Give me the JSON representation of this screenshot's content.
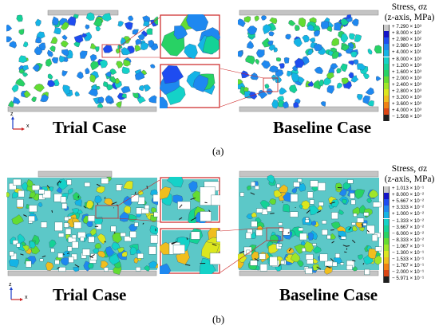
{
  "panel_a": {
    "label": "(a)",
    "trial_case": "Trial Case",
    "baseline_case": "Baseline Case",
    "legend": {
      "title_line1": "Stress, σz",
      "title_line2": "(z-axis, MPa)",
      "ticks": [
        "+ 7.290 × 10³",
        "+ 8.000 × 10²",
        "+ 2.980 × 10²",
        "+ 2.980 × 10¹",
        "+ 4.000 × 10¹",
        "+ 8.000 × 10³",
        "+ 1.200 × 10³",
        "+ 1.600 × 10³",
        "+ 2.000 × 10³",
        "+ 2.400 × 10³",
        "+ 2.800 × 10³",
        "+ 3.200 × 10³",
        "+ 3.600 × 10³",
        "+ 4.000 × 10³",
        "− 1.508 × 10³"
      ],
      "colors": [
        "#c8c8c8",
        "#1414c8",
        "#1e4cf0",
        "#1e88f0",
        "#14b4e6",
        "#14d2c8",
        "#14d296",
        "#28d264",
        "#64dc32",
        "#a0e628",
        "#dce61e",
        "#f0be1e",
        "#f08214",
        "#dc4614",
        "#1e1e1e"
      ]
    },
    "axis": {
      "z": "z",
      "x": "x"
    }
  },
  "panel_b": {
    "label": "(b)",
    "trial_case": "Trial Case",
    "baseline_case": "Baseline Case",
    "legend": {
      "title_line1": "Stress, σz",
      "title_line2": "(z-axis, MPa)",
      "ticks": [
        "+ 1.013 × 10⁻¹",
        "+ 8.000 × 10⁻²",
        "+ 5.667 × 10⁻²",
        "+ 3.333 × 10⁻²",
        "+ 1.000 × 10⁻²",
        "− 1.333 × 10⁻²",
        "− 3.667 × 10⁻²",
        "− 6.000 × 10⁻²",
        "− 8.333 × 10⁻²",
        "− 1.067 × 10⁻¹",
        "− 1.300 × 10⁻¹",
        "− 1.533 × 10⁻¹",
        "− 1.767 × 10⁻¹",
        "− 2.000 × 10⁻¹",
        "− 5.971 × 10⁻¹"
      ],
      "colors": [
        "#c8c8c8",
        "#1414c8",
        "#1e4cf0",
        "#1e88f0",
        "#14b4e6",
        "#14d2c8",
        "#14d296",
        "#28d264",
        "#64dc32",
        "#a0e628",
        "#dce61e",
        "#f0be1e",
        "#f08214",
        "#dc4614",
        "#1e1e1e"
      ]
    },
    "axis": {
      "z": "z",
      "x": "x"
    }
  },
  "colors": {
    "plate": "#c4c4c4",
    "zoom_frame": "#cc2222",
    "axis_z": "#1a3cc8",
    "axis_x": "#cc2222"
  }
}
